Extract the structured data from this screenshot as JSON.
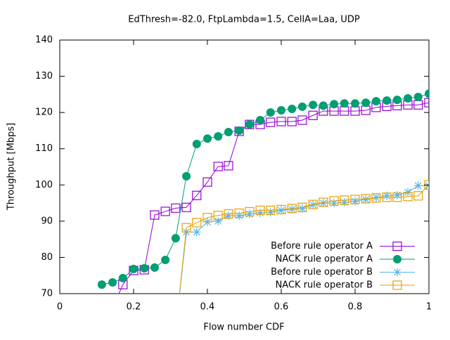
{
  "chart_data": {
    "type": "line",
    "title": "EdThresh=-82.0, FtpLambda=1.5, CellA=Laa, UDP",
    "xlabel": "Flow number  CDF",
    "ylabel": "Throughput [Mbps]",
    "xlim": [
      0,
      1
    ],
    "ylim": [
      70,
      140
    ],
    "xticks": [
      0,
      0.2,
      0.4,
      0.6,
      0.8,
      1
    ],
    "yticks": [
      70,
      80,
      90,
      100,
      110,
      120,
      130,
      140
    ],
    "grid": false,
    "legend": "bottom right",
    "series": [
      {
        "name": "Before rule operator A",
        "color": "#9400d3",
        "marker": "open-square",
        "x": [
          0.143,
          0.171,
          0.2,
          0.229,
          0.257,
          0.286,
          0.314,
          0.343,
          0.371,
          0.4,
          0.429,
          0.457,
          0.486,
          0.514,
          0.543,
          0.571,
          0.6,
          0.629,
          0.657,
          0.686,
          0.714,
          0.743,
          0.771,
          0.8,
          0.829,
          0.857,
          0.886,
          0.914,
          0.943,
          0.971,
          1
        ],
        "values": [
          66,
          72.5,
          76.4,
          76.6,
          91.7,
          92.7,
          93.6,
          93.8,
          97.1,
          100.8,
          105.1,
          105.3,
          114.8,
          116.7,
          116.7,
          117.3,
          117.5,
          117.5,
          117.9,
          119.2,
          120.4,
          120.4,
          120.4,
          120.4,
          120.6,
          121.4,
          121.7,
          121.9,
          122.1,
          122.1,
          122.7
        ]
      },
      {
        "name": "NACK rule operator A",
        "color": "#009e73",
        "marker": "filled-circle",
        "x": [
          0.114,
          0.143,
          0.171,
          0.2,
          0.229,
          0.257,
          0.286,
          0.314,
          0.343,
          0.371,
          0.4,
          0.429,
          0.457,
          0.486,
          0.514,
          0.543,
          0.571,
          0.6,
          0.629,
          0.657,
          0.686,
          0.714,
          0.743,
          0.771,
          0.8,
          0.829,
          0.857,
          0.886,
          0.914,
          0.943,
          0.971,
          1
        ],
        "values": [
          72.5,
          73.1,
          74.3,
          76.8,
          77,
          77.2,
          79.3,
          85.3,
          102.4,
          111.3,
          112.8,
          113.4,
          114.6,
          115,
          116.7,
          117.9,
          120,
          120.6,
          121,
          121.6,
          122.1,
          121.9,
          122.3,
          122.5,
          122.5,
          122.7,
          123.1,
          123.3,
          123.5,
          123.9,
          124.3,
          125.2
        ]
      },
      {
        "name": "Before rule operator B",
        "color": "#56b4e9",
        "marker": "star",
        "x": [
          0.314,
          0.343,
          0.371,
          0.4,
          0.429,
          0.457,
          0.486,
          0.514,
          0.543,
          0.571,
          0.6,
          0.629,
          0.657,
          0.686,
          0.714,
          0.743,
          0.771,
          0.8,
          0.829,
          0.857,
          0.886,
          0.914,
          0.943,
          0.971,
          1
        ],
        "values": [
          60,
          87,
          87,
          89.8,
          90,
          91.5,
          91.5,
          92,
          92.3,
          92.5,
          93,
          93.3,
          93.5,
          94.5,
          95,
          95,
          95.2,
          95.5,
          96,
          96.5,
          97,
          97.2,
          98,
          99.8,
          99.8
        ]
      },
      {
        "name": "NACK rule operator B",
        "color": "#e69f00",
        "marker": "open-square",
        "x": [
          0.314,
          0.343,
          0.371,
          0.4,
          0.429,
          0.457,
          0.486,
          0.514,
          0.543,
          0.571,
          0.6,
          0.629,
          0.657,
          0.686,
          0.714,
          0.743,
          0.771,
          0.8,
          0.829,
          0.857,
          0.886,
          0.914,
          0.943,
          0.971,
          1
        ],
        "values": [
          60,
          88.2,
          89.6,
          91,
          91.6,
          92,
          92.2,
          92.6,
          93,
          93,
          93.2,
          93.5,
          93.8,
          94.6,
          95.2,
          95.6,
          95.8,
          96,
          96.2,
          96.4,
          96.6,
          96.6,
          96.8,
          97,
          100
        ]
      }
    ]
  }
}
